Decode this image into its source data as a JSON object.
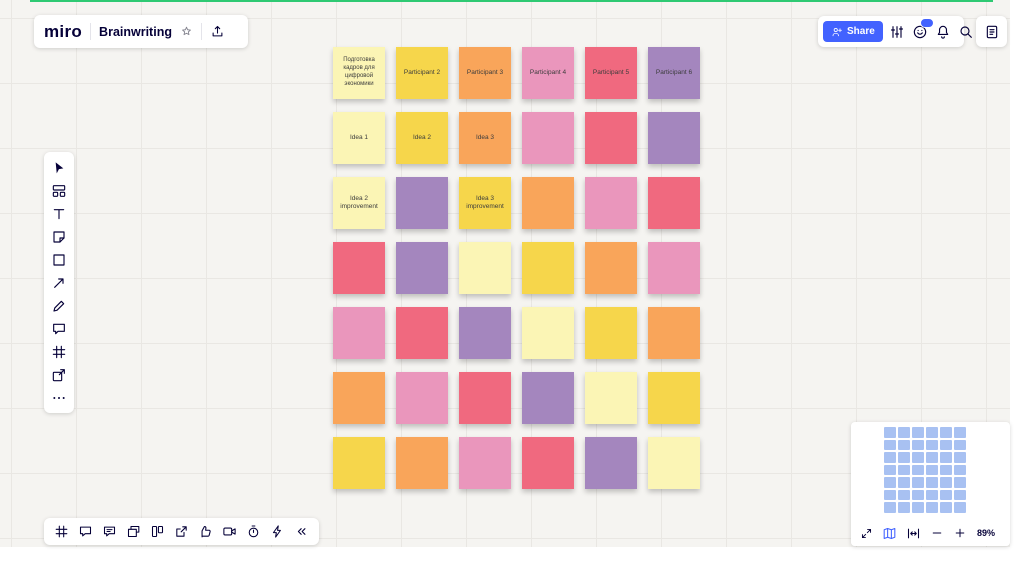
{
  "topbar": {
    "logo": "miro",
    "board_title": "Brainwriting",
    "share_label": "Share",
    "icons": [
      {
        "name": "filter-views",
        "icon": "adjust"
      },
      {
        "name": "help",
        "icon": "help",
        "badge": true
      },
      {
        "name": "notifications",
        "icon": "bell"
      },
      {
        "name": "search",
        "icon": "search"
      }
    ]
  },
  "left_toolbar": {
    "tools": [
      {
        "name": "select-tool",
        "icon": "select"
      },
      {
        "name": "templates-tool",
        "icon": "templates"
      },
      {
        "name": "text-tool",
        "icon": "text"
      },
      {
        "name": "sticky-note-tool",
        "icon": "sticky"
      },
      {
        "name": "shapes-tool",
        "icon": "shape"
      },
      {
        "name": "connection-line-tool",
        "icon": "arrow"
      },
      {
        "name": "pen-tool",
        "icon": "pen"
      },
      {
        "name": "comment-tool",
        "icon": "comment"
      },
      {
        "name": "frame-tool",
        "icon": "frame"
      },
      {
        "name": "embed-tool",
        "icon": "embed"
      },
      {
        "name": "more-tools",
        "icon": "more"
      }
    ]
  },
  "bottom_toolbar": {
    "tools": [
      {
        "name": "frames-panel",
        "icon": "frame"
      },
      {
        "name": "chat",
        "icon": "chat"
      },
      {
        "name": "comments-panel",
        "icon": "comments"
      },
      {
        "name": "presentation-mode",
        "icon": "screens"
      },
      {
        "name": "cards",
        "icon": "cards"
      },
      {
        "name": "share-screen",
        "icon": "open-share"
      },
      {
        "name": "reactions",
        "icon": "thumb"
      },
      {
        "name": "video-chat",
        "icon": "camera"
      },
      {
        "name": "timer",
        "icon": "timer"
      },
      {
        "name": "voting",
        "icon": "bolt"
      },
      {
        "name": "collapse-toolbar",
        "icon": "chevrons-left"
      }
    ]
  },
  "zoom_controls": {
    "zoom_level": "89%"
  },
  "minimap": {
    "rows": 7,
    "cols": 6,
    "cell_color": "#a8c1f2"
  },
  "board": {
    "palette": {
      "paleYellow": "#FBF5B5",
      "yellow": "#F6D64B",
      "orange": "#F9A55A",
      "pink": "#EA96BC",
      "red": "#F0697F",
      "purple": "#A486BE"
    },
    "notes": [
      {
        "text": "Подготовка кадров для цифровой экономики",
        "color": "paleYellow"
      },
      {
        "text": "Participant 2",
        "color": "yellow"
      },
      {
        "text": "Participant 3",
        "color": "orange"
      },
      {
        "text": "Participant 4",
        "color": "pink"
      },
      {
        "text": "Participant 5",
        "color": "red"
      },
      {
        "text": "Participant 6",
        "color": "purple"
      },
      {
        "text": "Idea 1",
        "color": "paleYellow"
      },
      {
        "text": "Idea 2",
        "color": "yellow"
      },
      {
        "text": "Idea 3",
        "color": "orange"
      },
      {
        "text": "",
        "color": "pink"
      },
      {
        "text": "",
        "color": "red"
      },
      {
        "text": "",
        "color": "purple"
      },
      {
        "text": "Idea 2 improvement",
        "color": "paleYellow"
      },
      {
        "text": "",
        "color": "purple"
      },
      {
        "text": "Idea 3 improvement",
        "color": "yellow"
      },
      {
        "text": "",
        "color": "orange"
      },
      {
        "text": "",
        "color": "pink"
      },
      {
        "text": "",
        "color": "red"
      },
      {
        "text": "",
        "color": "red"
      },
      {
        "text": "",
        "color": "purple"
      },
      {
        "text": "",
        "color": "paleYellow"
      },
      {
        "text": "",
        "color": "yellow"
      },
      {
        "text": "",
        "color": "orange"
      },
      {
        "text": "",
        "color": "pink"
      },
      {
        "text": "",
        "color": "pink"
      },
      {
        "text": "",
        "color": "red"
      },
      {
        "text": "",
        "color": "purple"
      },
      {
        "text": "",
        "color": "paleYellow"
      },
      {
        "text": "",
        "color": "yellow"
      },
      {
        "text": "",
        "color": "orange"
      },
      {
        "text": "",
        "color": "orange"
      },
      {
        "text": "",
        "color": "pink"
      },
      {
        "text": "",
        "color": "red"
      },
      {
        "text": "",
        "color": "purple"
      },
      {
        "text": "",
        "color": "paleYellow"
      },
      {
        "text": "",
        "color": "yellow"
      },
      {
        "text": "",
        "color": "yellow"
      },
      {
        "text": "",
        "color": "orange"
      },
      {
        "text": "",
        "color": "pink"
      },
      {
        "text": "",
        "color": "red"
      },
      {
        "text": "",
        "color": "purple"
      },
      {
        "text": "",
        "color": "paleYellow"
      }
    ]
  }
}
